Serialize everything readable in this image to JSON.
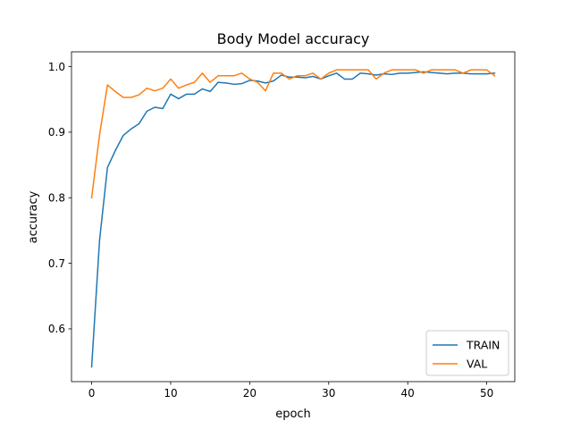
{
  "chart_data": {
    "type": "line",
    "title": "Body Model accuracy",
    "xlabel": "epoch",
    "ylabel": "accuracy",
    "xlim": [
      -2.55,
      53.55
    ],
    "ylim": [
      0.5195,
      1.0225
    ],
    "xticks": [
      0,
      10,
      20,
      30,
      40,
      50
    ],
    "yticks": [
      0.6,
      0.7,
      0.8,
      0.9,
      1.0
    ],
    "ytick_labels": [
      "0.6",
      "0.7",
      "0.8",
      "0.9",
      "1.0"
    ],
    "grid": false,
    "legend": "lower-right",
    "x": [
      0,
      1,
      2,
      3,
      4,
      5,
      6,
      7,
      8,
      9,
      10,
      11,
      12,
      13,
      14,
      15,
      16,
      17,
      18,
      19,
      20,
      21,
      22,
      23,
      24,
      25,
      26,
      27,
      28,
      29,
      30,
      31,
      32,
      33,
      34,
      35,
      36,
      37,
      38,
      39,
      40,
      41,
      42,
      43,
      44,
      45,
      46,
      47,
      48,
      49,
      50,
      51
    ],
    "series": [
      {
        "name": "TRAIN",
        "color": "#1f77b4",
        "values": [
          0.542,
          0.735,
          0.846,
          0.872,
          0.895,
          0.905,
          0.913,
          0.932,
          0.938,
          0.936,
          0.958,
          0.951,
          0.958,
          0.958,
          0.966,
          0.962,
          0.976,
          0.975,
          0.973,
          0.974,
          0.979,
          0.978,
          0.975,
          0.978,
          0.987,
          0.984,
          0.984,
          0.983,
          0.985,
          0.981,
          0.986,
          0.99,
          0.981,
          0.981,
          0.99,
          0.989,
          0.987,
          0.989,
          0.988,
          0.99,
          0.99,
          0.991,
          0.992,
          0.991,
          0.99,
          0.989,
          0.99,
          0.99,
          0.989,
          0.989,
          0.989,
          0.99
        ]
      },
      {
        "name": "VAL",
        "color": "#ff7f0e",
        "values": [
          0.8,
          0.896,
          0.972,
          0.962,
          0.953,
          0.953,
          0.957,
          0.967,
          0.963,
          0.967,
          0.981,
          0.967,
          0.972,
          0.976,
          0.99,
          0.976,
          0.986,
          0.986,
          0.986,
          0.99,
          0.981,
          0.976,
          0.963,
          0.99,
          0.99,
          0.981,
          0.986,
          0.986,
          0.99,
          0.981,
          0.99,
          0.995,
          0.995,
          0.995,
          0.995,
          0.995,
          0.981,
          0.99,
          0.995,
          0.995,
          0.995,
          0.995,
          0.99,
          0.995,
          0.995,
          0.995,
          0.995,
          0.99,
          0.995,
          0.995,
          0.995,
          0.986
        ]
      }
    ]
  }
}
